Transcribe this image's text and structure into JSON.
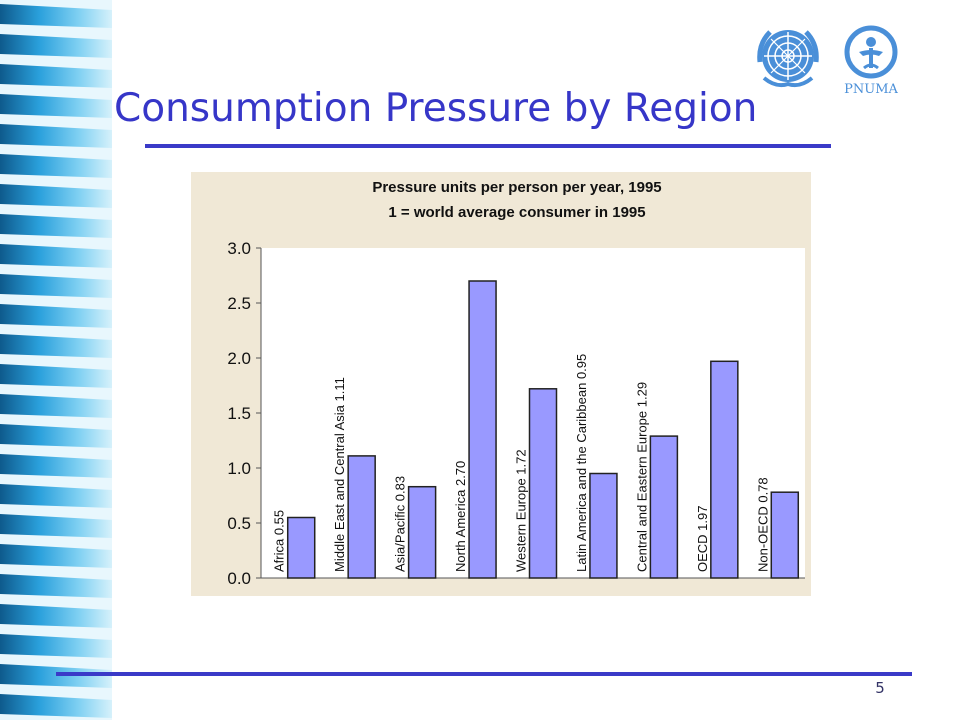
{
  "slide": {
    "title": "Consumption Pressure by Region",
    "page_number": "5",
    "logo_text": "PNUMA"
  },
  "chart_data": {
    "type": "bar",
    "title": "Pressure units per person per year, 1995",
    "subtitle": "1 = world average consumer in 1995",
    "categories": [
      "Africa",
      "Middle East and Central Asia",
      "Asia/Pacific",
      "North America",
      "Western Europe",
      "Latin America and the Caribbean",
      "Central and Eastern Europe",
      "OECD",
      "Non-OECD"
    ],
    "values": [
      0.55,
      1.11,
      0.83,
      2.7,
      1.72,
      0.95,
      1.29,
      1.97,
      0.78
    ],
    "bar_labels": [
      "Africa 0.55",
      "Middle East and Central Asia 1.11",
      "Asia/Pacific 0.83",
      "North America 2.70",
      "Western Europe 1.72",
      "Latin America  and the Caribbean 0.95",
      "Central and Eastern Europe 1.29",
      "OECD 1.97",
      "Non-OECD 0.78"
    ],
    "y_ticks": [
      "0.0",
      "0.5",
      "1.0",
      "1.5",
      "2.0",
      "2.5",
      "3.0"
    ],
    "ylim": [
      0,
      3
    ],
    "grid": false,
    "legend": "none",
    "colors": {
      "bar_fill": "#9999ff",
      "bar_stroke": "#222222",
      "header_bg": "#f0e8d6",
      "plot_bg": "#ffffff"
    }
  }
}
